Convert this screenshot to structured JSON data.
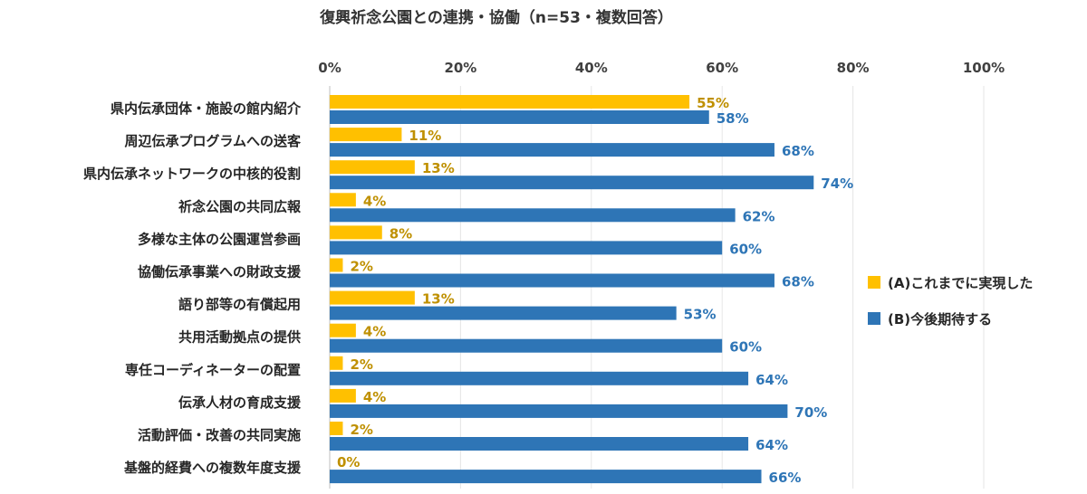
{
  "chart_data": {
    "type": "bar",
    "orientation": "horizontal",
    "title": "復興祈念公園との連携・協働（n=53・複数回答）",
    "x_ticks": [
      "0%",
      "20%",
      "40%",
      "60%",
      "80%",
      "100%"
    ],
    "xlim": [
      0,
      100
    ],
    "value_suffix": "%",
    "categories": [
      "県内伝承団体・施設の館内紹介",
      "周辺伝承プログラムへの送客",
      "県内伝承ネットワークの中核的役割",
      "祈念公園の共同広報",
      "多様な主体の公園運営参画",
      "協働伝承事業への財政支援",
      "語り部等の有償起用",
      "共用活動拠点の提供",
      "専任コーディネーターの配置",
      "伝承人材の育成支援",
      "活動評価・改善の共同実施",
      "基盤的経費への複数年度支援"
    ],
    "series": [
      {
        "name": "(A)これまでに実現した",
        "color": "#FFC000",
        "label_color": "#BF9000",
        "values": [
          55,
          11,
          13,
          4,
          8,
          2,
          13,
          4,
          2,
          4,
          2,
          0
        ]
      },
      {
        "name": "(B)今後期待する",
        "color": "#2E75B6",
        "label_color": "#2E75B6",
        "values": [
          58,
          68,
          74,
          62,
          60,
          68,
          53,
          60,
          64,
          70,
          64,
          66
        ]
      }
    ],
    "legend_position": "right",
    "grid": true
  }
}
